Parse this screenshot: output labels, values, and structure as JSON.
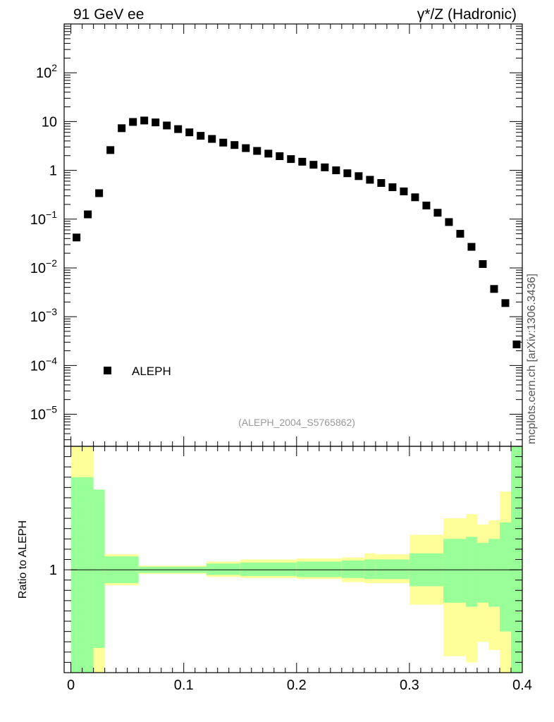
{
  "header": {
    "left": "91 GeV ee",
    "right": "γ*/Z (Hadronic)"
  },
  "side_text": "mcplots.cern.ch [arXiv:1306.3436]",
  "colors": {
    "marker": "#000000",
    "band_inner": "#99ff99",
    "band_outer": "#ffff99",
    "ref_line": "#000000"
  },
  "chart_data": [
    {
      "type": "scatter",
      "panel": "main",
      "scale": "log-y",
      "xlim": [
        -0.006,
        0.4
      ],
      "ylim": [
        2.2e-06,
        1000
      ],
      "yticks": [
        {
          "value": 1e-05,
          "base": "10",
          "exp": "−5"
        },
        {
          "value": 0.0001,
          "base": "10",
          "exp": "−4"
        },
        {
          "value": 0.001,
          "base": "10",
          "exp": "−3"
        },
        {
          "value": 0.01,
          "base": "10",
          "exp": "−2"
        },
        {
          "value": 0.1,
          "base": "10",
          "exp": "−1"
        },
        {
          "value": 1,
          "base": "1",
          "exp": ""
        },
        {
          "value": 10,
          "base": "10",
          "exp": ""
        },
        {
          "value": 100,
          "base": "10",
          "exp": "2"
        }
      ],
      "legend": {
        "label": "ALEPH",
        "position": "bottom-left"
      },
      "annotation": "(ALEPH_2004_S5765862)",
      "series": [
        {
          "name": "ALEPH",
          "x": [
            0.005,
            0.015,
            0.025,
            0.035,
            0.045,
            0.055,
            0.065,
            0.075,
            0.085,
            0.095,
            0.105,
            0.115,
            0.125,
            0.135,
            0.145,
            0.155,
            0.165,
            0.175,
            0.185,
            0.195,
            0.205,
            0.215,
            0.225,
            0.235,
            0.245,
            0.255,
            0.265,
            0.275,
            0.285,
            0.295,
            0.305,
            0.315,
            0.325,
            0.335,
            0.345,
            0.355,
            0.365,
            0.375,
            0.385,
            0.395
          ],
          "y": [
            0.042,
            0.125,
            0.34,
            2.6,
            7.3,
            9.8,
            10.5,
            9.6,
            8.3,
            7.0,
            6.0,
            5.1,
            4.4,
            3.7,
            3.3,
            2.85,
            2.5,
            2.2,
            1.95,
            1.7,
            1.5,
            1.3,
            1.15,
            1.0,
            0.87,
            0.76,
            0.64,
            0.55,
            0.45,
            0.37,
            0.28,
            0.19,
            0.135,
            0.087,
            0.05,
            0.027,
            0.012,
            0.0037,
            0.0019,
            0.00027
          ]
        }
      ]
    },
    {
      "type": "area",
      "panel": "ratio",
      "ylabel": "Ratio to ALEPH",
      "xlim": [
        -0.006,
        0.4
      ],
      "ylim": [
        0.5,
        1.6
      ],
      "yticks": [
        {
          "value": 1,
          "label": "1"
        }
      ],
      "xticks": [
        {
          "value": 0,
          "label": "0"
        },
        {
          "value": 0.1,
          "label": "0.1"
        },
        {
          "value": 0.2,
          "label": "0.2"
        },
        {
          "value": 0.3,
          "label": "0.3"
        },
        {
          "value": 0.4,
          "label": "0.4"
        }
      ],
      "reference_line": 1,
      "bins": [
        {
          "x0": 0.0,
          "x1": 0.02,
          "inner": [
            0.5,
            1.45
          ],
          "outer": [
            0.5,
            1.6
          ]
        },
        {
          "x0": 0.02,
          "x1": 0.03,
          "inner": [
            0.62,
            1.39
          ],
          "outer": [
            0.5,
            1.33
          ]
        },
        {
          "x0": 0.03,
          "x1": 0.06,
          "inner": [
            0.935,
            1.065
          ],
          "outer": [
            0.925,
            1.075
          ]
        },
        {
          "x0": 0.06,
          "x1": 0.12,
          "inner": [
            0.985,
            1.015
          ],
          "outer": [
            0.98,
            1.02
          ]
        },
        {
          "x0": 0.12,
          "x1": 0.15,
          "inner": [
            0.975,
            1.03
          ],
          "outer": [
            0.965,
            1.04
          ]
        },
        {
          "x0": 0.15,
          "x1": 0.2,
          "inner": [
            0.97,
            1.035
          ],
          "outer": [
            0.96,
            1.05
          ]
        },
        {
          "x0": 0.2,
          "x1": 0.24,
          "inner": [
            0.965,
            1.04
          ],
          "outer": [
            0.955,
            1.055
          ]
        },
        {
          "x0": 0.24,
          "x1": 0.26,
          "inner": [
            0.96,
            1.045
          ],
          "outer": [
            0.94,
            1.06
          ]
        },
        {
          "x0": 0.26,
          "x1": 0.27,
          "inner": [
            0.955,
            1.05
          ],
          "outer": [
            0.935,
            1.08
          ]
        },
        {
          "x0": 0.27,
          "x1": 0.3,
          "inner": [
            0.955,
            1.05
          ],
          "outer": [
            0.935,
            1.075
          ]
        },
        {
          "x0": 0.3,
          "x1": 0.33,
          "inner": [
            0.92,
            1.08
          ],
          "outer": [
            0.83,
            1.17
          ]
        },
        {
          "x0": 0.33,
          "x1": 0.35,
          "inner": [
            0.84,
            1.15
          ],
          "outer": [
            0.58,
            1.25
          ]
        },
        {
          "x0": 0.35,
          "x1": 0.36,
          "inner": [
            0.82,
            1.16
          ],
          "outer": [
            0.55,
            1.27
          ]
        },
        {
          "x0": 0.36,
          "x1": 0.37,
          "inner": [
            0.84,
            1.13
          ],
          "outer": [
            0.65,
            1.22
          ]
        },
        {
          "x0": 0.37,
          "x1": 0.38,
          "inner": [
            0.82,
            1.15
          ],
          "outer": [
            0.61,
            1.24
          ]
        },
        {
          "x0": 0.38,
          "x1": 0.39,
          "inner": [
            0.7,
            1.23
          ],
          "outer": [
            0.5,
            1.38
          ]
        },
        {
          "x0": 0.39,
          "x1": 0.4,
          "inner": [
            0.5,
            1.6
          ],
          "outer": [
            0.5,
            1.6
          ]
        }
      ]
    }
  ]
}
